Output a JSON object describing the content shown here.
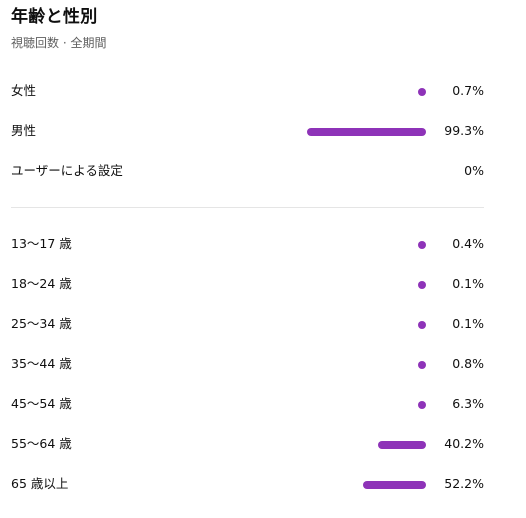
{
  "header": {
    "title": "年齢と性別",
    "subtitle": "視聴回数 · 全期間"
  },
  "accent_color": "#8e33b8",
  "gender": [
    {
      "label": "女性",
      "value": "0.7%",
      "fraction": 0.007
    },
    {
      "label": "男性",
      "value": "99.3%",
      "fraction": 0.993
    },
    {
      "label": "ユーザーによる設定",
      "value": "0%",
      "fraction": 0
    }
  ],
  "age": [
    {
      "label": "13〜17 歳",
      "value": "0.4%",
      "fraction": 0.004
    },
    {
      "label": "18〜24 歳",
      "value": "0.1%",
      "fraction": 0.001
    },
    {
      "label": "25〜34 歳",
      "value": "0.1%",
      "fraction": 0.001
    },
    {
      "label": "35〜44 歳",
      "value": "0.8%",
      "fraction": 0.008
    },
    {
      "label": "45〜54 歳",
      "value": "6.3%",
      "fraction": 0.063
    },
    {
      "label": "55〜64 歳",
      "value": "40.2%",
      "fraction": 0.402
    },
    {
      "label": "65 歳以上",
      "value": "52.2%",
      "fraction": 0.522
    }
  ]
}
